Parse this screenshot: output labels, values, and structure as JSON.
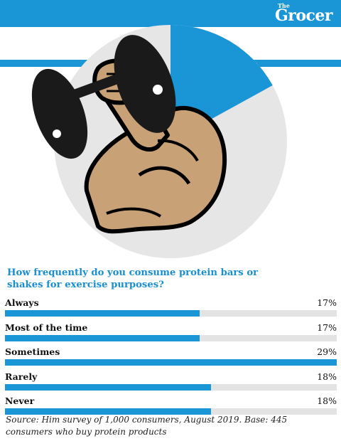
{
  "brand": {
    "the": "The",
    "name": "Grocer"
  },
  "colors": {
    "accent": "#1a95d5",
    "track": "#e3e3e3",
    "pie_rest": "#e6e6e6"
  },
  "hero": {
    "pie_highlight_percent": 17,
    "illustration": "flexed-arm-with-dumbbell-icon"
  },
  "chart_data": {
    "type": "bar",
    "title": "How frequently do you consume protein bars or shakes for exercise purposes?",
    "categories": [
      "Always",
      "Most of the time",
      "Sometimes",
      "Rarely",
      "Never"
    ],
    "values": [
      17,
      17,
      29,
      18,
      18
    ],
    "labels": [
      "17%",
      "17%",
      "29%",
      "18%",
      "18%"
    ],
    "xlim": [
      0,
      29
    ],
    "orientation": "horizontal"
  },
  "source": "Source: Him survey of 1,000 consumers, August 2019. Base: 445 consumers who buy protein products"
}
